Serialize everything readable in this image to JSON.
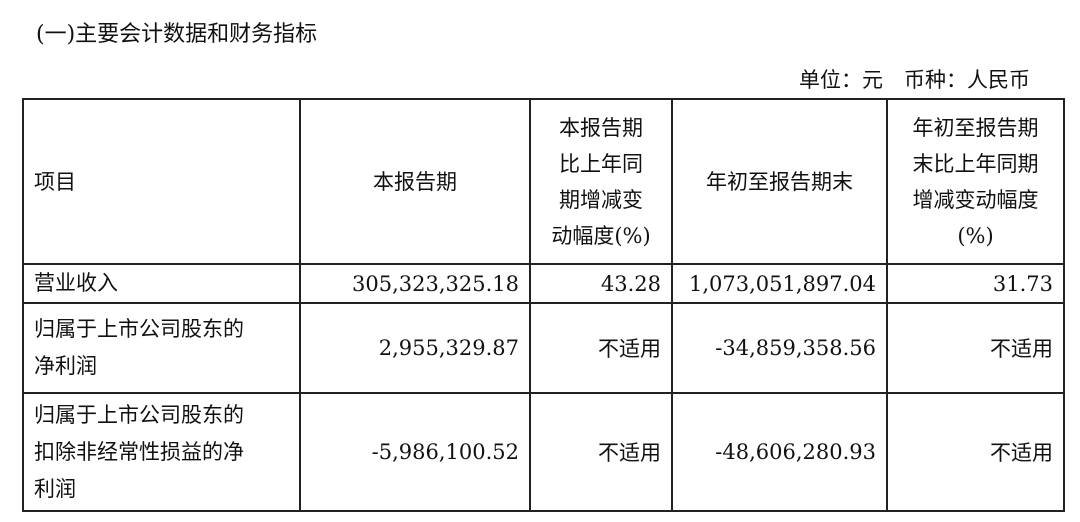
{
  "title": "(一)主要会计数据和财务指标",
  "unit_line": "单位：元　币种：人民币",
  "table": {
    "headers": [
      "项目",
      "本报告期",
      "本报告期比上年同期增减变动幅度(%)",
      "年初至报告期末",
      "年初至报告期末比上年同期增减变动幅度(%)"
    ],
    "header_lines": {
      "h3": [
        "本报告期",
        "比上年同",
        "期增减变",
        "动幅度(%)"
      ],
      "h5": [
        "年初至报告期",
        "末比上年同期",
        "增减变动幅度",
        "(%)"
      ]
    },
    "rows": [
      {
        "item": "营业收入",
        "current": "305,323,325.18",
        "current_change": "43.28",
        "ytd": "1,073,051,897.04",
        "ytd_change": "31.73"
      },
      {
        "item": "归属于上市公司股东的净利润",
        "item_lines": [
          "归属于上市公司股东的",
          "净利润"
        ],
        "current": "2,955,329.87",
        "current_change": "不适用",
        "ytd": "-34,859,358.56",
        "ytd_change": "不适用"
      },
      {
        "item": "归属于上市公司股东的扣除非经常性损益的净利润",
        "item_lines": [
          "归属于上市公司股东的",
          "扣除非经常性损益的净",
          "利润"
        ],
        "current": "-5,986,100.52",
        "current_change": "不适用",
        "ytd": "-48,606,280.93",
        "ytd_change": "不适用"
      }
    ]
  }
}
